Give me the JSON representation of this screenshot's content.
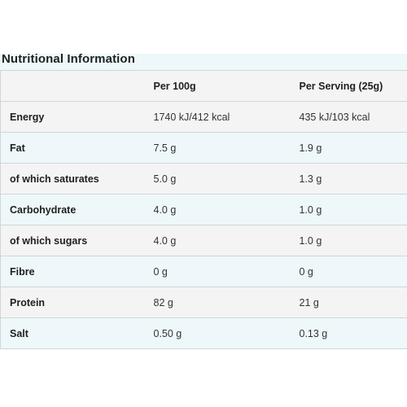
{
  "title": "Nutritional Information",
  "table": {
    "headers": [
      "",
      "Per 100g",
      "Per Serving (25g)"
    ],
    "rows": [
      {
        "label": "Energy",
        "per100": "1740 kJ/412 kcal",
        "perServing": "435 kJ/103 kcal"
      },
      {
        "label": "Fat",
        "per100": "7.5 g",
        "perServing": "1.9 g"
      },
      {
        "label": "of which saturates",
        "per100": "5.0 g",
        "perServing": "1.3 g"
      },
      {
        "label": "Carbohydrate",
        "per100": "4.0 g",
        "perServing": "1.0 g"
      },
      {
        "label": "of which sugars",
        "per100": "4.0 g",
        "perServing": "1.0 g"
      },
      {
        "label": "Fibre",
        "per100": "0 g",
        "perServing": "0 g"
      },
      {
        "label": "Protein",
        "per100": "82 g",
        "perServing": "21 g"
      },
      {
        "label": "Salt",
        "per100": "0.50 g",
        "perServing": "0.13 g"
      }
    ]
  }
}
